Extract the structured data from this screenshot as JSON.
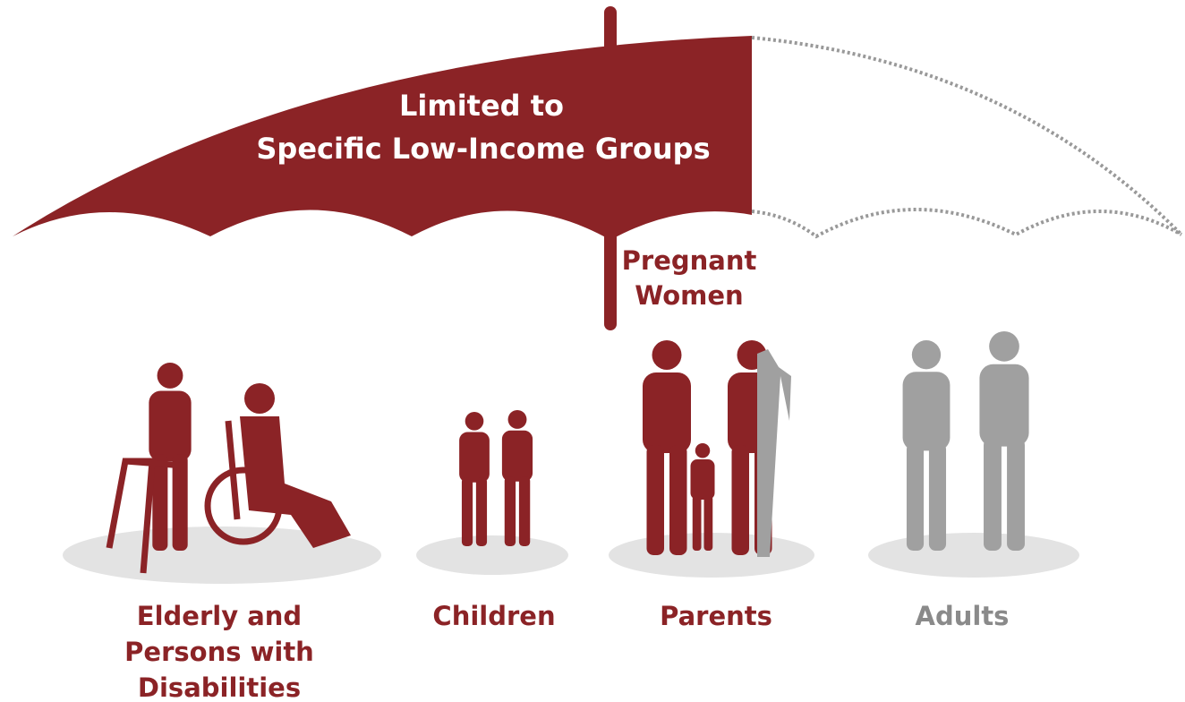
{
  "umbrella": {
    "label": [
      "Limited to",
      "Specific Low-Income Groups"
    ]
  },
  "handle_label": [
    "Pregnant",
    "Women"
  ],
  "groups": [
    {
      "label": [
        "Elderly and",
        "Persons with",
        "Disabilities"
      ]
    },
    {
      "label": [
        "Children"
      ]
    },
    {
      "label": [
        "Parents"
      ]
    },
    {
      "label": [
        "Adults"
      ]
    }
  ]
}
